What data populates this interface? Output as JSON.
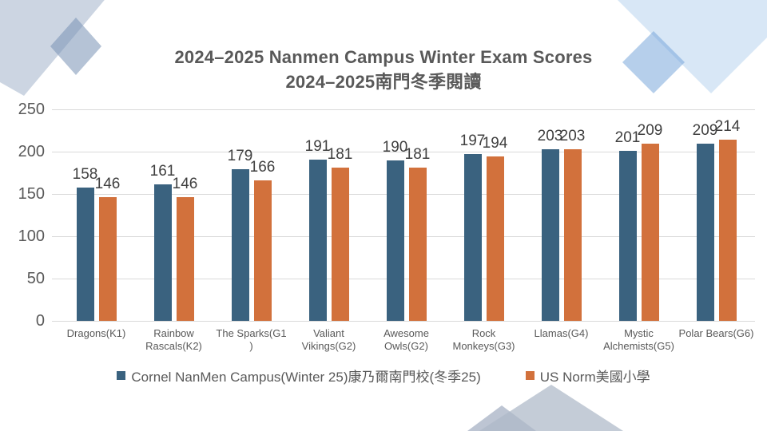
{
  "slide": {
    "title_line1": "2024–2025 Nanmen Campus Winter Exam Scores",
    "title_line2": "2024–2025南門冬季閱讀"
  },
  "chart_data": {
    "type": "bar",
    "title": "2024–2025 Nanmen Campus Winter Exam Scores 2024–2025南門冬季閱讀",
    "categories": [
      "Dragons(K1)",
      "Rainbow Rascals(K2)",
      "The Sparks(G1)",
      "Valiant Vikings(G2)",
      "Awesome Owls(G2)",
      "Rock Monkeys(G3)",
      "Llamas(G4)",
      "Mystic Alchemists(G5)",
      "Polar Bears(G6)"
    ],
    "category_display_lines": [
      [
        "Dragons(K1)"
      ],
      [
        "Rainbow",
        "Rascals(K2)"
      ],
      [
        "The Sparks(G1",
        ")"
      ],
      [
        "Valiant",
        "Vikings(G2)"
      ],
      [
        "Awesome",
        "Owls(G2)"
      ],
      [
        "Rock",
        "Monkeys(G3)"
      ],
      [
        "Llamas(G4)"
      ],
      [
        "Mystic",
        "Alchemists(G5)"
      ],
      [
        "Polar Bears(G6)"
      ]
    ],
    "series": [
      {
        "name": "Cornel NanMen Campus(Winter 25)康乃爾南門校(冬季25)",
        "color": "#3A627F",
        "values": [
          158,
          161,
          179,
          191,
          190,
          197,
          203,
          201,
          209
        ]
      },
      {
        "name": "US Norm美國小學",
        "color": "#D2713C",
        "values": [
          146,
          146,
          166,
          181,
          181,
          194,
          203,
          209,
          214
        ]
      }
    ],
    "xlabel": "",
    "ylabel": "",
    "ylim": [
      0,
      250
    ],
    "yticks": [
      0,
      50,
      100,
      150,
      200,
      250
    ],
    "grid": true,
    "legend_position": "bottom",
    "data_labels": true
  },
  "colors": {
    "bar_blue": "#3A627F",
    "bar_orange": "#D2713C",
    "axis_text": "#595959",
    "value_label": "#3F3F3F",
    "gridline": "#D9D9D9",
    "decor_light_blue": "#CBD5E3",
    "decor_mid_blue": "#9CAFC8",
    "decor_sky_blue": "#D8E6F6",
    "decor_accent_blue": "#A2C4E6",
    "decor_mountain": "#C4CEDB"
  }
}
